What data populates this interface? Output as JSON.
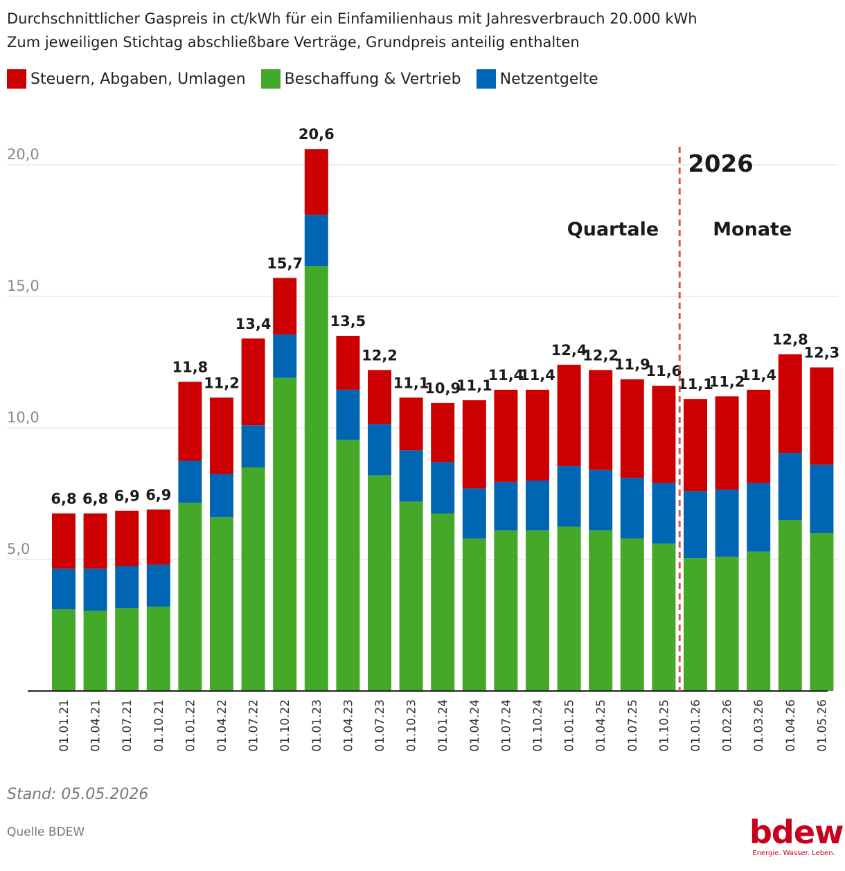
{
  "header": {
    "title_line1": "Durchschnittlicher Gaspreis in ct/kWh für ein Einfamilienhaus mit Jahresverbrauch 20.000 kWh",
    "title_line2": "Zum jeweiligen Stichtag abschließbare Verträge, Grundpreis anteilig enthalten"
  },
  "legend": [
    {
      "label": "Steuern, Abgaben, Umlagen",
      "color": "#cc0000"
    },
    {
      "label": "Beschaffung & Vertrieb",
      "color": "#44a829"
    },
    {
      "label": "Netzentgelte",
      "color": "#0066b3"
    }
  ],
  "chart_data": {
    "type": "bar",
    "stacked": true,
    "categories": [
      "01.01.21",
      "01.04.21",
      "01.07.21",
      "01.10.21",
      "01.01.22",
      "01.04.22",
      "01.07.22",
      "01.10.22",
      "01.01.23",
      "01.04.23",
      "01.07.23",
      "01.10.23",
      "01.01.24",
      "01.04.24",
      "01.07.24",
      "01.10.24",
      "01.01.25",
      "01.04.25",
      "01.07.25",
      "01.10.25",
      "01.01.26",
      "01.02.26",
      "01.03.26",
      "01.04.26",
      "01.05.26"
    ],
    "series": [
      {
        "name": "Beschaffung & Vertrieb",
        "color": "#44a829",
        "values": [
          3.1,
          3.05,
          3.15,
          3.2,
          7.15,
          6.6,
          8.5,
          11.9,
          16.15,
          9.55,
          8.2,
          7.2,
          6.75,
          5.8,
          6.1,
          6.1,
          6.25,
          6.1,
          5.8,
          5.6,
          5.05,
          5.1,
          5.3,
          6.5,
          6.0
        ]
      },
      {
        "name": "Netzentgelte",
        "color": "#0066b3",
        "values": [
          1.55,
          1.6,
          1.6,
          1.6,
          1.6,
          1.65,
          1.6,
          1.65,
          1.95,
          1.9,
          1.95,
          1.95,
          1.95,
          1.9,
          1.85,
          1.9,
          2.3,
          2.3,
          2.3,
          2.3,
          2.55,
          2.55,
          2.6,
          2.55,
          2.6
        ]
      },
      {
        "name": "Steuern, Abgaben, Umlagen",
        "color": "#cc0000",
        "values": [
          2.1,
          2.1,
          2.1,
          2.1,
          3.0,
          2.9,
          3.3,
          2.15,
          2.5,
          2.05,
          2.05,
          2.0,
          2.25,
          3.35,
          3.5,
          3.45,
          3.85,
          3.8,
          3.75,
          3.7,
          3.5,
          3.55,
          3.55,
          3.75,
          3.7
        ]
      }
    ],
    "totals": [
      "6,8",
      "6,8",
      "6,9",
      "6,9",
      "11,8",
      "11,2",
      "13,4",
      "15,7",
      "20,6",
      "13,5",
      "12,2",
      "11,1",
      "10,9",
      "11,1",
      "11,4",
      "11,4",
      "12,4",
      "12,2",
      "11,9",
      "11,6",
      "11,1",
      "11,2",
      "11,4",
      "12,8",
      "12,3"
    ],
    "total_values": [
      6.75,
      6.75,
      6.85,
      6.9,
      11.75,
      11.15,
      13.4,
      15.7,
      20.6,
      13.5,
      12.2,
      11.15,
      10.95,
      11.05,
      11.45,
      11.45,
      12.4,
      12.2,
      11.85,
      11.6,
      11.1,
      11.2,
      11.45,
      12.8,
      12.3
    ],
    "y_ticks": [
      5.0,
      10.0,
      15.0,
      20.0
    ],
    "y_tick_labels": [
      "5,0",
      "10,0",
      "15,0",
      "20,0"
    ],
    "ylim": [
      0,
      20.6
    ],
    "grid": true,
    "legend_position": "top-left",
    "annotations": {
      "divider_after_category": "01.10.25",
      "year_label": "2026",
      "left_label": "Quartale",
      "right_label": "Monate"
    }
  },
  "footer": {
    "stand": "Stand: 05.05.2026",
    "source": "Quelle BDEW",
    "logo_text": "bdew",
    "logo_tagline": "Energie. Wasser. Leben."
  }
}
